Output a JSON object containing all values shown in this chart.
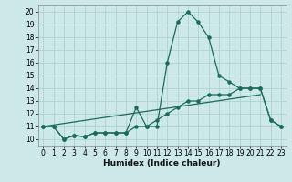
{
  "xlabel": "Humidex (Indice chaleur)",
  "background_color": "#cce8e8",
  "grid_color": "#aacece",
  "line_color": "#1a6b5a",
  "xlim": [
    -0.5,
    23.5
  ],
  "ylim": [
    9.5,
    20.5
  ],
  "xticks": [
    0,
    1,
    2,
    3,
    4,
    5,
    6,
    7,
    8,
    9,
    10,
    11,
    12,
    13,
    14,
    15,
    16,
    17,
    18,
    19,
    20,
    21,
    22,
    23
  ],
  "yticks": [
    10,
    11,
    12,
    13,
    14,
    15,
    16,
    17,
    18,
    19,
    20
  ],
  "curve1_x": [
    0,
    1,
    2,
    3,
    4,
    5,
    6,
    7,
    8,
    9,
    10,
    11,
    12,
    13,
    14,
    15,
    16,
    17,
    18,
    19,
    20,
    21,
    22,
    23
  ],
  "curve1_y": [
    11.0,
    11.0,
    10.0,
    10.3,
    10.2,
    10.5,
    10.5,
    10.5,
    10.5,
    12.5,
    11.0,
    11.0,
    16.0,
    19.2,
    20.0,
    19.2,
    18.0,
    15.0,
    14.5,
    14.0,
    14.0,
    14.0,
    11.5,
    11.0
  ],
  "curve2_x": [
    0,
    1,
    2,
    3,
    4,
    5,
    6,
    7,
    8,
    9,
    10,
    11,
    12,
    13,
    14,
    15,
    16,
    17,
    18,
    19,
    20,
    21,
    22,
    23
  ],
  "curve2_y": [
    11.0,
    11.0,
    10.0,
    10.3,
    10.2,
    10.5,
    10.5,
    10.5,
    10.5,
    11.0,
    11.0,
    11.5,
    12.0,
    12.5,
    13.0,
    13.0,
    13.5,
    13.5,
    13.5,
    14.0,
    14.0,
    14.0,
    11.5,
    11.0
  ],
  "curve3_x": [
    0,
    21
  ],
  "curve3_y": [
    11.0,
    13.5
  ]
}
